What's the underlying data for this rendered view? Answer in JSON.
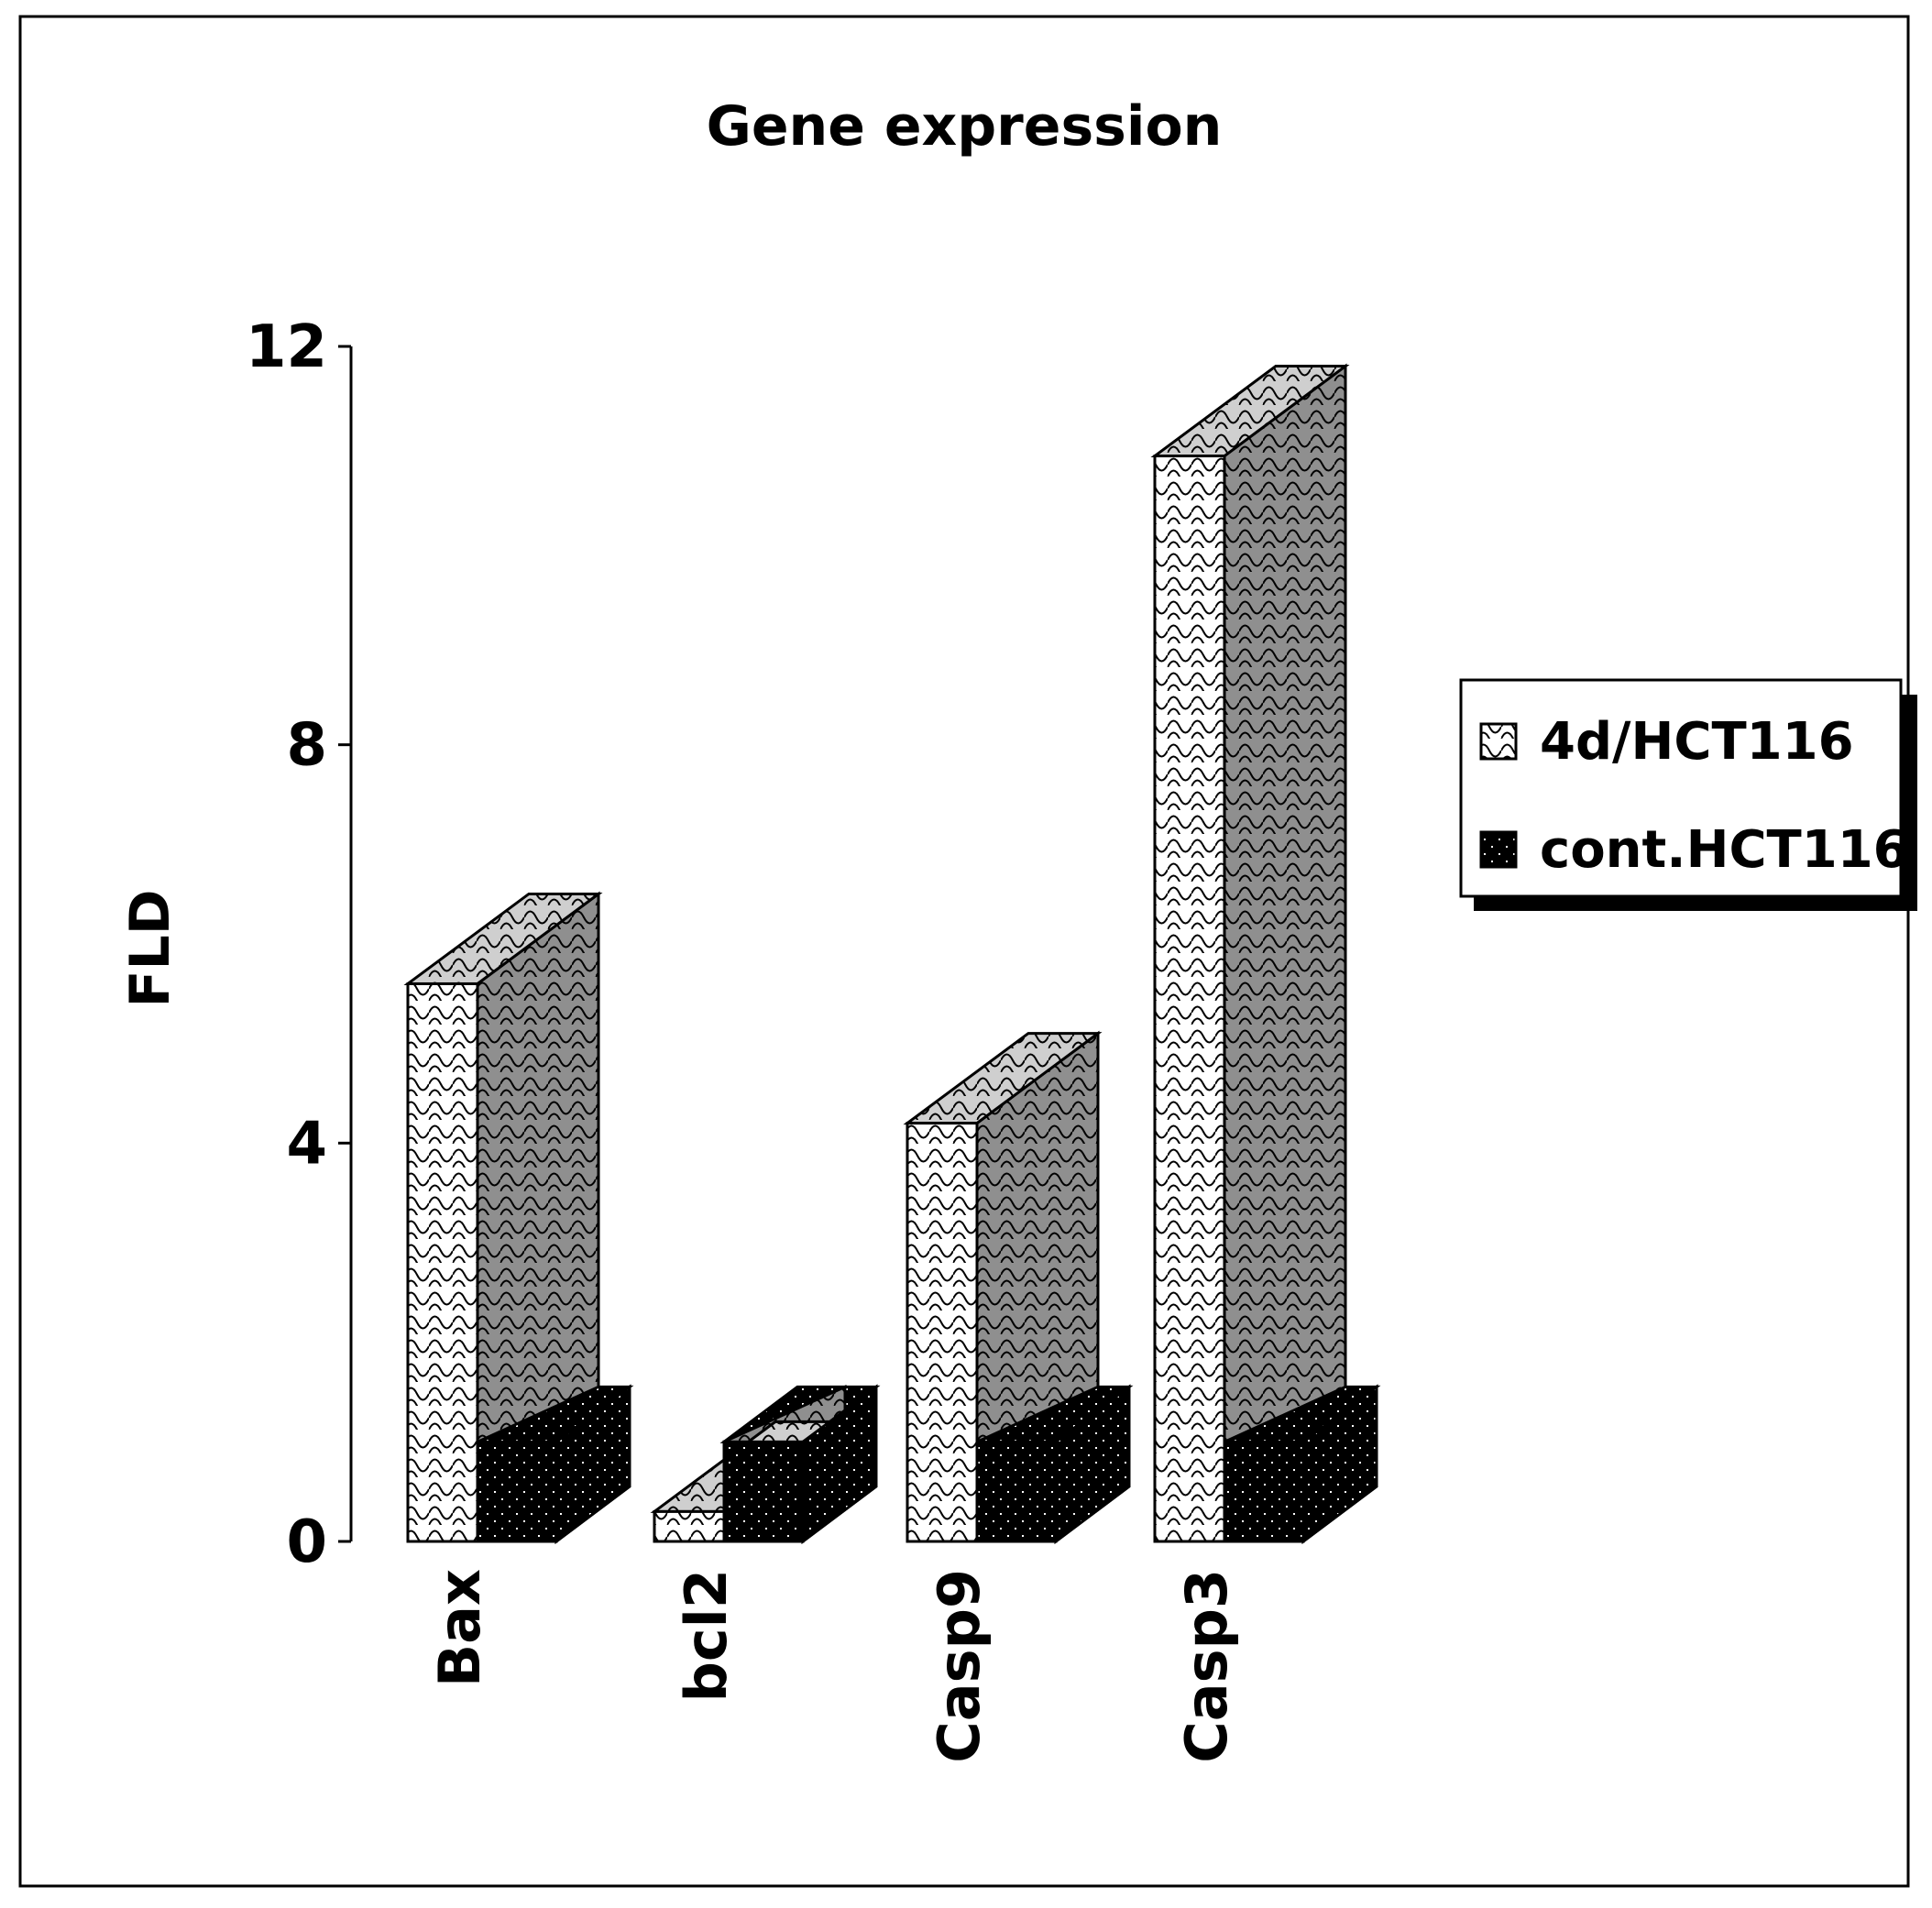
{
  "chart_data": {
    "type": "bar",
    "title": "Gene expression",
    "ylabel": "FLD",
    "xlabel": "",
    "categories": [
      "Bax",
      "bcl2",
      "Casp9",
      "Casp3"
    ],
    "series": [
      {
        "name": "4d/HCT116",
        "values": [
          5.6,
          0.3,
          4.2,
          10.9
        ],
        "color": "#ffffff",
        "pattern": "scales"
      },
      {
        "name": "cont.HCT116",
        "values": [
          1,
          1,
          1,
          1
        ],
        "color": "#000000",
        "pattern": "dots"
      }
    ],
    "ylim": [
      0,
      12
    ],
    "yticks": [
      "0",
      "4",
      "8",
      "12"
    ],
    "grid": false,
    "legend_position": "right",
    "view": "3d-depth"
  }
}
